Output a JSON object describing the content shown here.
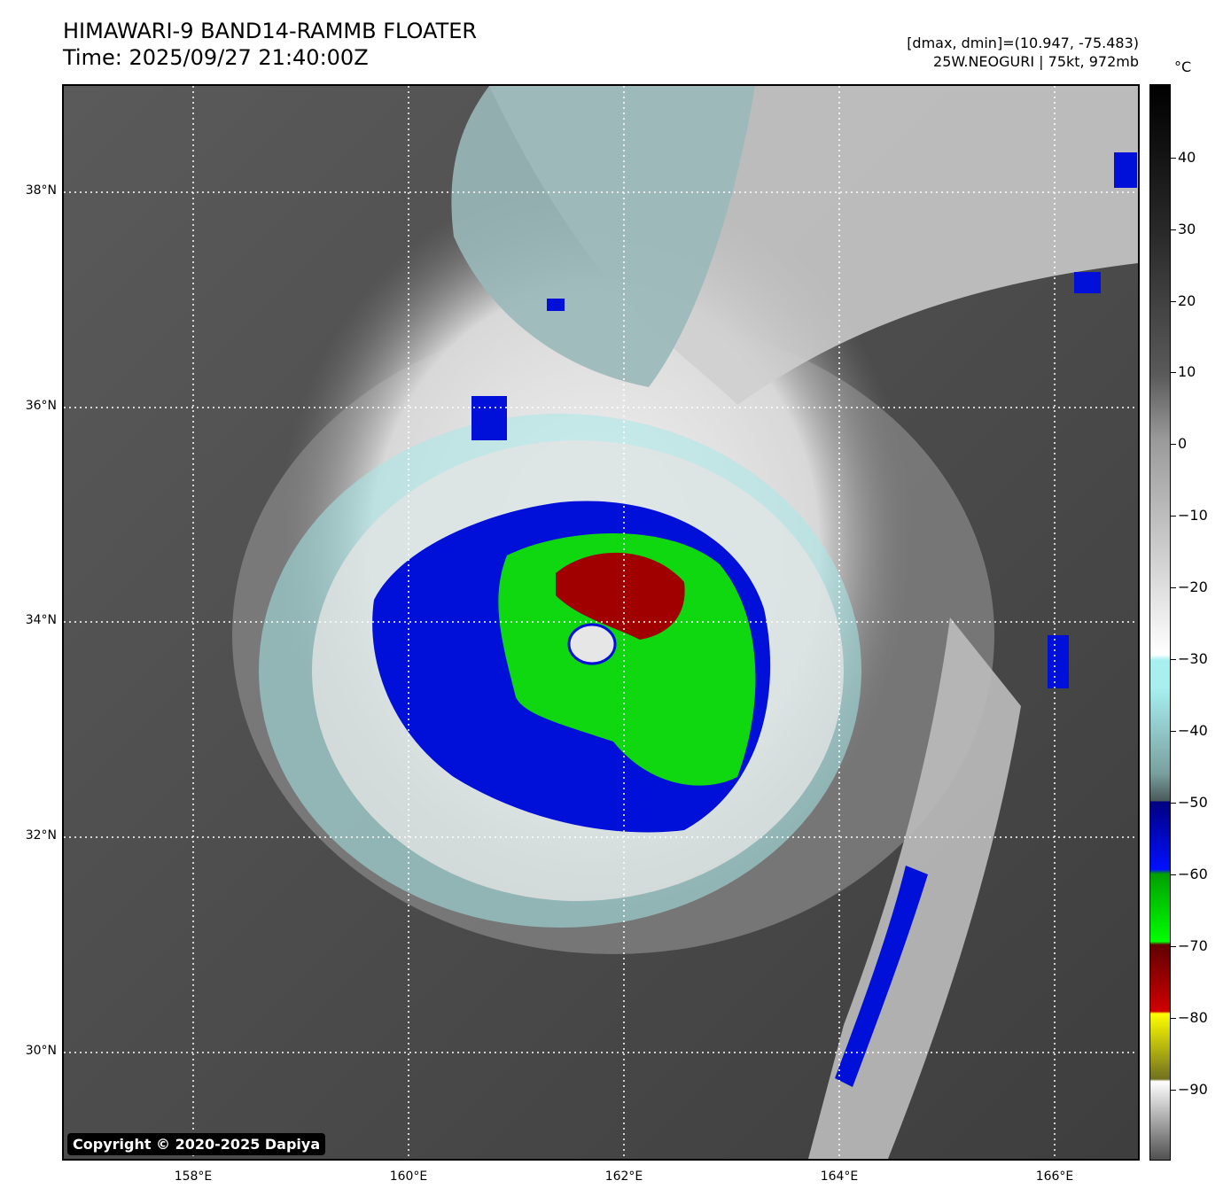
{
  "header": {
    "title_line1": "HIMAWARI-9 BAND14-RAMMB FLOATER",
    "title_line2": "Time: 2025/09/27 21:40:00Z",
    "meta_line1": "[dmax, dmin]=(10.947, -75.483)",
    "meta_line2": "25W.NEOGURI | 75kt, 972mb"
  },
  "colorbar": {
    "unit": "°C",
    "ticks": [
      "40",
      "30",
      "20",
      "10",
      "0",
      "−10",
      "−20",
      "−30",
      "−40",
      "−50",
      "−60",
      "−70",
      "−80",
      "−90"
    ]
  },
  "axes": {
    "lat_labels": [
      "38°N",
      "36°N",
      "34°N",
      "32°N",
      "30°N"
    ],
    "lon_labels": [
      "158°E",
      "160°E",
      "162°E",
      "164°E",
      "166°E"
    ]
  },
  "copyright": "Copyright © 2020-2025 Dapiya",
  "colors": {
    "background_warm": "#4a4a4a",
    "cloud_white": "#e8e8e8",
    "cyan": "#a8f0f0",
    "blue": "#0010d8",
    "green": "#10d810",
    "red": "#a00000"
  }
}
